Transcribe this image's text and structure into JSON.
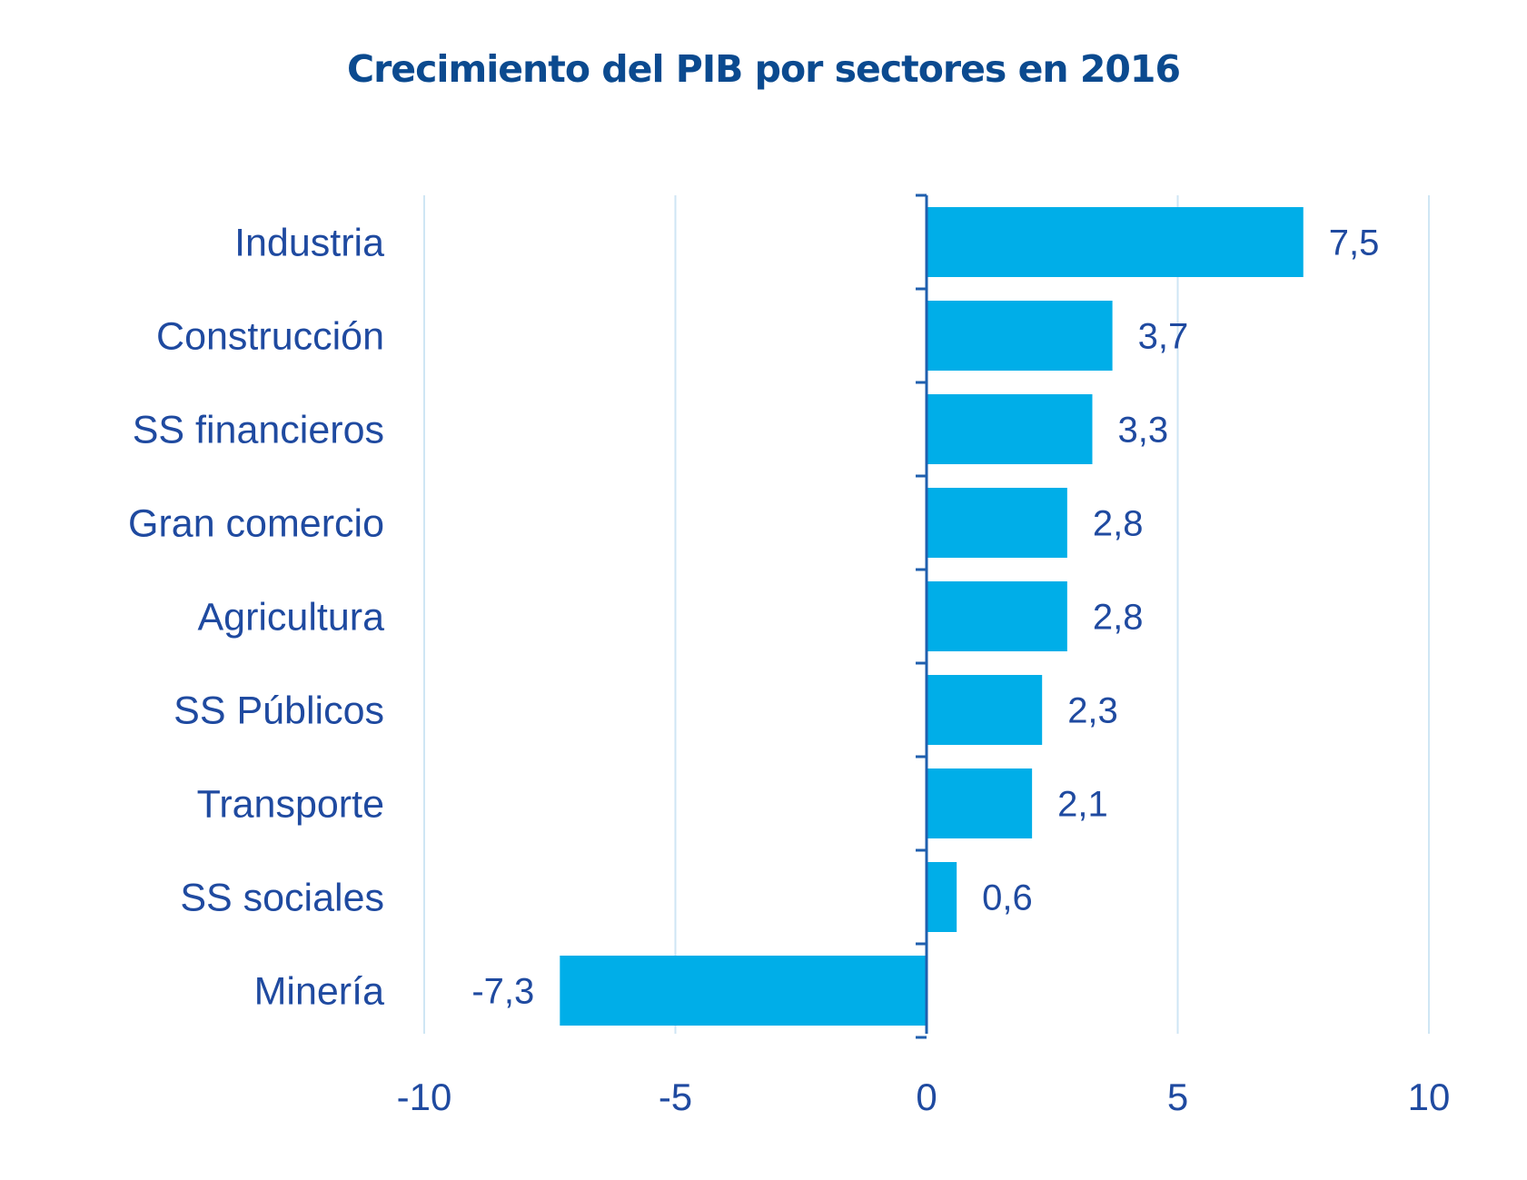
{
  "colors": {
    "title": "#0b4a8f",
    "text": "#1f4aa0",
    "bar": "#00aee8",
    "axis": "#1f5fae",
    "grid": "#cfe6f4"
  },
  "chart_data": {
    "type": "bar",
    "orientation": "horizontal",
    "title": "Crecimiento del PIB por sectores en 2016",
    "xlabel": "",
    "ylabel": "",
    "categories": [
      "Industria",
      "Construcción",
      "SS financieros",
      "Gran comercio",
      "Agricultura",
      "SS Públicos",
      "Transporte",
      "SS sociales",
      "Minería"
    ],
    "values": [
      7.5,
      3.7,
      3.3,
      2.8,
      2.8,
      2.3,
      2.1,
      0.6,
      -7.3
    ],
    "value_labels": [
      "7,5",
      "3,7",
      "3,3",
      "2,8",
      "2,8",
      "2,3",
      "2,1",
      "0,6",
      "-7,3"
    ],
    "xlim": [
      -10,
      10
    ],
    "xticks": [
      -10,
      -5,
      0,
      5,
      10
    ],
    "xtick_labels": [
      "-10",
      "-5",
      "0",
      "5",
      "10"
    ],
    "grid": "vertical",
    "legend": "none"
  }
}
